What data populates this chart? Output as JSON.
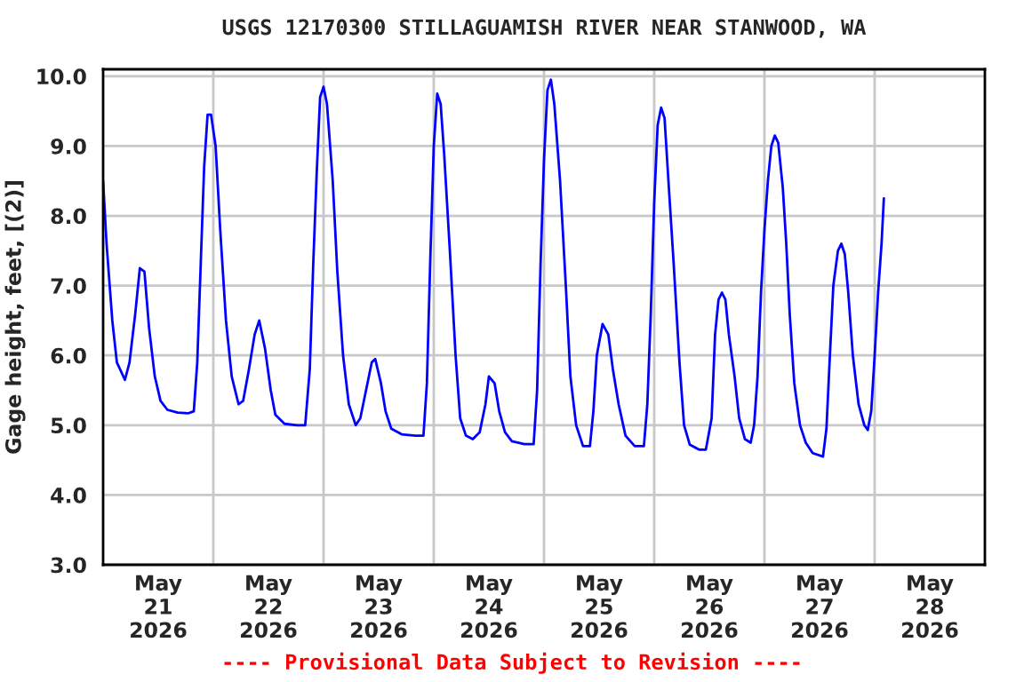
{
  "chart_data": {
    "type": "line",
    "title": "USGS 12170300 STILLAGUAMISH RIVER NEAR STANWOOD, WA",
    "ylabel": "Gage height, feet, [(2)]",
    "annotations": [
      "---- Provisional Data Subject to Revision ----"
    ],
    "grid": true,
    "legend": false,
    "marker": "none",
    "line_style": "solid",
    "xlim": [
      "2026-05-21",
      "2026-05-29"
    ],
    "xticks": [
      {
        "value": "2026-05-21T12:00",
        "label": "May\n21\n2026"
      },
      {
        "value": "2026-05-22",
        "label": null
      },
      {
        "value": "2026-05-22T12:00",
        "label": "May\n22\n2026"
      },
      {
        "value": "2026-05-23",
        "label": null
      },
      {
        "value": "2026-05-23T12:00",
        "label": "May\n23\n2026"
      },
      {
        "value": "2026-05-24",
        "label": null
      },
      {
        "value": "2026-05-24T12:00",
        "label": "May\n24\n2026"
      },
      {
        "value": "2026-05-25",
        "label": null
      },
      {
        "value": "2026-05-25T12:00",
        "label": "May\n25\n2026"
      },
      {
        "value": "2026-05-26",
        "label": null
      },
      {
        "value": "2026-05-26T12:00",
        "label": "May\n26\n2026"
      },
      {
        "value": "2026-05-27",
        "label": null
      },
      {
        "value": "2026-05-27T12:00",
        "label": "May\n27\n2026"
      },
      {
        "value": "2026-05-28",
        "label": null
      },
      {
        "value": "2026-05-28T12:00",
        "label": "May\n28\n2026"
      }
    ],
    "ylim": [
      3.0,
      10.1
    ],
    "yticks": [
      {
        "value": 3,
        "label": "3.0"
      },
      {
        "value": 4,
        "label": "4.0"
      },
      {
        "value": 5,
        "label": "5.0"
      },
      {
        "value": 6,
        "label": "6.0"
      },
      {
        "value": 7,
        "label": "7.0"
      },
      {
        "value": 8,
        "label": "8.0"
      },
      {
        "value": 9,
        "label": "9.0"
      },
      {
        "value": 10,
        "label": "10.0"
      }
    ],
    "x": [
      "2026-05-21T00:00",
      "2026-05-21T00:45",
      "2026-05-21T02:00",
      "2026-05-21T03:00",
      "2026-05-21T04:45",
      "2026-05-21T05:45",
      "2026-05-21T07:00",
      "2026-05-21T08:00",
      "2026-05-21T09:00",
      "2026-05-21T10:00",
      "2026-05-21T11:15",
      "2026-05-21T12:30",
      "2026-05-21T14:00",
      "2026-05-21T16:15",
      "2026-05-21T18:30",
      "2026-05-21T19:45",
      "2026-05-21T20:30",
      "2026-05-21T21:15",
      "2026-05-21T22:00",
      "2026-05-21T22:45",
      "2026-05-21T23:30",
      "2026-05-22T00:30",
      "2026-05-22T01:30",
      "2026-05-22T02:45",
      "2026-05-22T04:00",
      "2026-05-22T05:30",
      "2026-05-22T06:30",
      "2026-05-22T07:45",
      "2026-05-22T09:00",
      "2026-05-22T10:00",
      "2026-05-22T11:15",
      "2026-05-22T12:30",
      "2026-05-22T13:30",
      "2026-05-22T15:30",
      "2026-05-22T18:15",
      "2026-05-22T20:00",
      "2026-05-22T21:00",
      "2026-05-22T21:45",
      "2026-05-22T22:30",
      "2026-05-22T23:15",
      "2026-05-23T00:00",
      "2026-05-23T00:45",
      "2026-05-23T02:00",
      "2026-05-23T03:00",
      "2026-05-23T04:15",
      "2026-05-23T05:30",
      "2026-05-23T07:00",
      "2026-05-23T08:00",
      "2026-05-23T09:15",
      "2026-05-23T10:30",
      "2026-05-23T11:15",
      "2026-05-23T12:30",
      "2026-05-23T13:30",
      "2026-05-23T14:45",
      "2026-05-23T17:00",
      "2026-05-23T20:00",
      "2026-05-23T21:45",
      "2026-05-23T22:30",
      "2026-05-23T23:15",
      "2026-05-24T00:00",
      "2026-05-24T00:45",
      "2026-05-24T01:30",
      "2026-05-24T02:15",
      "2026-05-24T03:30",
      "2026-05-24T04:45",
      "2026-05-24T05:45",
      "2026-05-24T07:00",
      "2026-05-24T08:30",
      "2026-05-24T10:00",
      "2026-05-24T11:15",
      "2026-05-24T12:00",
      "2026-05-24T13:15",
      "2026-05-24T14:15",
      "2026-05-24T15:30",
      "2026-05-24T17:00",
      "2026-05-24T19:45",
      "2026-05-24T21:45",
      "2026-05-24T22:30",
      "2026-05-24T23:15",
      "2026-05-25T00:00",
      "2026-05-25T00:45",
      "2026-05-25T01:30",
      "2026-05-25T02:15",
      "2026-05-25T03:30",
      "2026-05-25T04:45",
      "2026-05-25T05:45",
      "2026-05-25T07:00",
      "2026-05-25T08:30",
      "2026-05-25T10:00",
      "2026-05-25T10:45",
      "2026-05-25T11:30",
      "2026-05-25T12:45",
      "2026-05-25T14:00",
      "2026-05-25T15:00",
      "2026-05-25T16:15",
      "2026-05-25T17:45",
      "2026-05-25T19:45",
      "2026-05-25T21:45",
      "2026-05-25T22:30",
      "2026-05-25T23:15",
      "2026-05-26T00:00",
      "2026-05-26T00:45",
      "2026-05-26T01:30",
      "2026-05-26T02:15",
      "2026-05-26T03:00",
      "2026-05-26T04:15",
      "2026-05-26T05:30",
      "2026-05-26T06:30",
      "2026-05-26T07:45",
      "2026-05-26T09:45",
      "2026-05-26T11:15",
      "2026-05-26T12:30",
      "2026-05-26T13:15",
      "2026-05-26T14:00",
      "2026-05-26T14:45",
      "2026-05-26T15:30",
      "2026-05-26T16:15",
      "2026-05-26T17:30",
      "2026-05-26T18:30",
      "2026-05-26T19:45",
      "2026-05-26T21:00",
      "2026-05-26T21:45",
      "2026-05-26T22:30",
      "2026-05-26T23:15",
      "2026-05-27T00:00",
      "2026-05-27T00:45",
      "2026-05-27T01:30",
      "2026-05-27T02:15",
      "2026-05-27T03:00",
      "2026-05-27T04:00",
      "2026-05-27T04:45",
      "2026-05-27T05:30",
      "2026-05-27T06:30",
      "2026-05-27T07:45",
      "2026-05-27T09:00",
      "2026-05-27T10:30",
      "2026-05-27T12:45",
      "2026-05-27T13:30",
      "2026-05-27T14:15",
      "2026-05-27T15:00",
      "2026-05-27T16:00",
      "2026-05-27T16:45",
      "2026-05-27T17:30",
      "2026-05-27T18:15",
      "2026-05-27T19:15",
      "2026-05-27T20:30",
      "2026-05-27T21:45",
      "2026-05-27T22:30",
      "2026-05-27T23:15",
      "2026-05-28T00:00",
      "2026-05-28T00:45",
      "2026-05-28T01:30",
      "2026-05-28T02:00"
    ],
    "series": [
      {
        "color": "#0000ff",
        "values": [
          8.5,
          7.6,
          6.5,
          5.9,
          5.65,
          5.9,
          6.6,
          7.25,
          7.2,
          6.4,
          5.7,
          5.35,
          5.22,
          5.18,
          5.17,
          5.2,
          5.9,
          7.3,
          8.7,
          9.45,
          9.45,
          9.0,
          7.8,
          6.5,
          5.7,
          5.3,
          5.35,
          5.8,
          6.3,
          6.5,
          6.1,
          5.5,
          5.15,
          5.02,
          5.0,
          5.0,
          5.8,
          7.3,
          8.6,
          9.7,
          9.85,
          9.6,
          8.5,
          7.2,
          6.0,
          5.3,
          5.0,
          5.1,
          5.5,
          5.9,
          5.95,
          5.6,
          5.2,
          4.95,
          4.87,
          4.85,
          4.85,
          5.6,
          7.4,
          9.0,
          9.75,
          9.6,
          8.9,
          7.5,
          6.0,
          5.1,
          4.85,
          4.8,
          4.9,
          5.3,
          5.7,
          5.6,
          5.2,
          4.9,
          4.77,
          4.73,
          4.73,
          5.5,
          7.3,
          8.8,
          9.8,
          9.95,
          9.6,
          8.5,
          7.0,
          5.7,
          5.0,
          4.7,
          4.7,
          5.2,
          6.0,
          6.45,
          6.3,
          5.8,
          5.3,
          4.85,
          4.7,
          4.7,
          5.3,
          6.6,
          8.2,
          9.3,
          9.55,
          9.4,
          8.6,
          7.3,
          5.9,
          5.0,
          4.72,
          4.65,
          4.65,
          5.1,
          6.3,
          6.8,
          6.9,
          6.8,
          6.3,
          5.7,
          5.1,
          4.8,
          4.75,
          5.0,
          5.7,
          6.9,
          7.8,
          8.5,
          9.0,
          9.15,
          9.05,
          8.4,
          7.6,
          6.6,
          5.6,
          5.0,
          4.75,
          4.6,
          4.55,
          4.95,
          6.0,
          7.0,
          7.5,
          7.6,
          7.45,
          6.9,
          6.0,
          5.3,
          5.0,
          4.93,
          5.2,
          6.0,
          6.9,
          7.6,
          8.25
        ]
      }
    ]
  }
}
